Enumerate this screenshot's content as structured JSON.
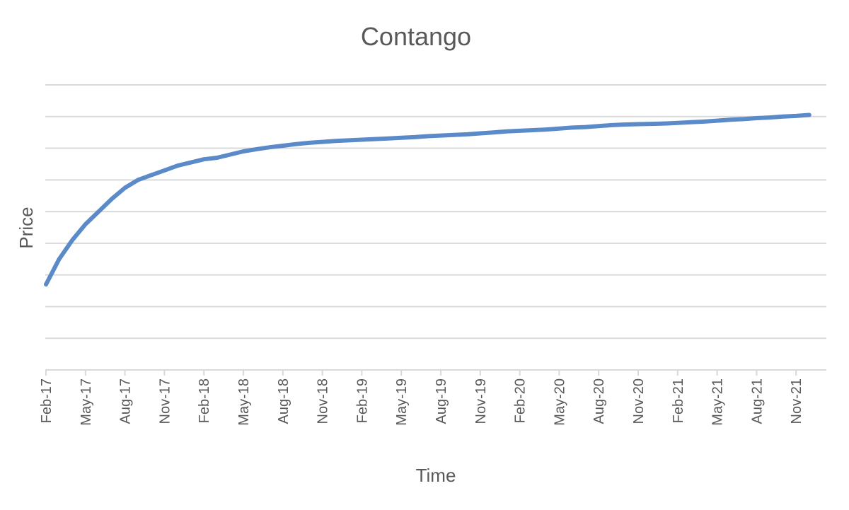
{
  "chart_data": {
    "type": "line",
    "title": "Contango",
    "xlabel": "Time",
    "ylabel": "Price",
    "x_tick_labels": [
      "Feb-17",
      "May-17",
      "Aug-17",
      "Nov-17",
      "Feb-18",
      "May-18",
      "Aug-18",
      "Nov-18",
      "Feb-19",
      "May-19",
      "Aug-19",
      "Nov-19",
      "Feb-20",
      "May-20",
      "Aug-20",
      "Nov-20",
      "Feb-21",
      "May-21",
      "Aug-21",
      "Nov-21"
    ],
    "x": [
      "Feb-17",
      "Mar-17",
      "Apr-17",
      "May-17",
      "Jun-17",
      "Jul-17",
      "Aug-17",
      "Sep-17",
      "Oct-17",
      "Nov-17",
      "Dec-17",
      "Jan-18",
      "Feb-18",
      "Mar-18",
      "Apr-18",
      "May-18",
      "Jun-18",
      "Jul-18",
      "Aug-18",
      "Sep-18",
      "Oct-18",
      "Nov-18",
      "Dec-18",
      "Jan-19",
      "Feb-19",
      "Mar-19",
      "Apr-19",
      "May-19",
      "Jun-19",
      "Jul-19",
      "Aug-19",
      "Sep-19",
      "Oct-19",
      "Nov-19",
      "Dec-19",
      "Jan-20",
      "Feb-20",
      "Mar-20",
      "Apr-20",
      "May-20",
      "Jun-20",
      "Jul-20",
      "Aug-20",
      "Sep-20",
      "Oct-20",
      "Nov-20",
      "Dec-20",
      "Jan-21",
      "Feb-21",
      "Mar-21",
      "Apr-21",
      "May-21",
      "Jun-21",
      "Jul-21",
      "Aug-21",
      "Sep-21",
      "Oct-21",
      "Nov-21",
      "Dec-21"
    ],
    "series": [
      {
        "values": [
          2.7,
          3.5,
          4.1,
          4.6,
          5.0,
          5.4,
          5.75,
          6.0,
          6.15,
          6.3,
          6.45,
          6.55,
          6.65,
          6.7,
          6.8,
          6.9,
          6.97,
          7.03,
          7.08,
          7.13,
          7.17,
          7.2,
          7.23,
          7.25,
          7.27,
          7.29,
          7.31,
          7.33,
          7.35,
          7.38,
          7.4,
          7.42,
          7.44,
          7.47,
          7.5,
          7.53,
          7.55,
          7.57,
          7.59,
          7.62,
          7.65,
          7.67,
          7.7,
          7.73,
          7.75,
          7.76,
          7.77,
          7.78,
          7.8,
          7.82,
          7.84,
          7.87,
          7.9,
          7.92,
          7.95,
          7.97,
          8.0,
          8.02,
          8.05
        ],
        "color": "#5b8ac8"
      }
    ],
    "ylim": [
      0,
      9
    ],
    "y_gridline_step": 1,
    "y_tick_labels_shown": false,
    "grid": true,
    "legend": "none"
  }
}
